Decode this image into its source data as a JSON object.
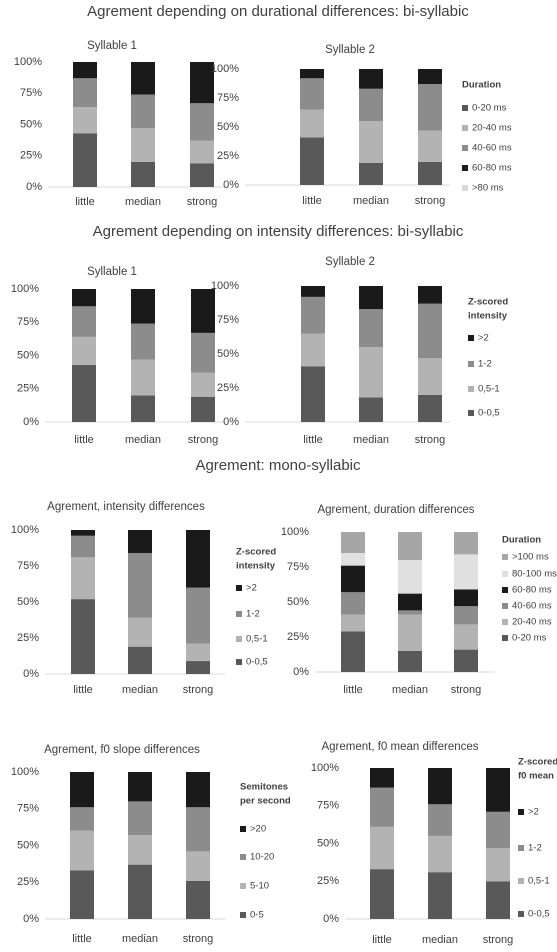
{
  "headings": [
    "Agrement depending on durational differences: bi-syllabic",
    "Agrement depending on intensity differences: bi-syllabic",
    "Agrement: mono-syllabic"
  ],
  "chart_data": [
    {
      "type": "bar",
      "stacked": true,
      "title": "Syllable 1",
      "categories": [
        "little",
        "median",
        "strong"
      ],
      "series": [
        {
          "color": "#595959",
          "values": [
            43,
            20,
            19
          ]
        },
        {
          "color": "#b3b3b3",
          "values": [
            21,
            27,
            18
          ]
        },
        {
          "color": "#8c8c8c",
          "values": [
            23,
            27,
            30
          ]
        },
        {
          "color": "#1a1a1a",
          "values": [
            13,
            26,
            33
          ]
        }
      ],
      "ylim": [
        0,
        100
      ],
      "yticks": [
        {
          "value": 0,
          "label": "0%"
        },
        {
          "value": 25,
          "label": "25%"
        },
        {
          "value": 50,
          "label": "50%"
        },
        {
          "value": 75,
          "label": "75%"
        },
        {
          "value": 100,
          "label": "100%"
        }
      ]
    },
    {
      "type": "bar",
      "stacked": true,
      "title": "Syllable 2",
      "categories": [
        "little",
        "median",
        "strong"
      ],
      "legend_title": [
        "Duration"
      ],
      "series": [
        {
          "name": "0-20 ms",
          "color": "#595959",
          "values": [
            41,
            19,
            20
          ]
        },
        {
          "name": "20-40 ms",
          "color": "#b3b3b3",
          "values": [
            24,
            36,
            27
          ]
        },
        {
          "name": "40-60 ms",
          "color": "#8c8c8c",
          "values": [
            27,
            28,
            40
          ]
        },
        {
          "name": "60-80 ms",
          "color": "#1a1a1a",
          "values": [
            8,
            17,
            13
          ]
        },
        {
          "name": ">80 ms",
          "color": "#d9d9d9",
          "values": [
            0,
            0,
            0
          ]
        }
      ],
      "ylim": [
        0,
        100
      ],
      "yticks": [
        {
          "value": 0,
          "label": "0%"
        },
        {
          "value": 25,
          "label": "25%"
        },
        {
          "value": 50,
          "label": "50%"
        },
        {
          "value": 75,
          "label": "75%"
        },
        {
          "value": 100,
          "label": "100%"
        }
      ]
    },
    {
      "type": "bar",
      "stacked": true,
      "title": "Syllable 1",
      "categories": [
        "little",
        "median",
        "strong"
      ],
      "series": [
        {
          "color": "#595959",
          "values": [
            43,
            20,
            19
          ]
        },
        {
          "color": "#b3b3b3",
          "values": [
            21,
            27,
            18
          ]
        },
        {
          "color": "#8c8c8c",
          "values": [
            23,
            27,
            30
          ]
        },
        {
          "color": "#1a1a1a",
          "values": [
            13,
            26,
            33
          ]
        }
      ],
      "ylim": [
        0,
        100
      ],
      "yticks": [
        {
          "value": 0,
          "label": "0%"
        },
        {
          "value": 25,
          "label": "25%"
        },
        {
          "value": 50,
          "label": "50%"
        },
        {
          "value": 75,
          "label": "75%"
        },
        {
          "value": 100,
          "label": "100%"
        }
      ]
    },
    {
      "type": "bar",
      "stacked": true,
      "title": "Syllable 2",
      "categories": [
        "little",
        "median",
        "strong"
      ],
      "legend_title": [
        "Z-scored",
        "intensity"
      ],
      "series": [
        {
          "name": "0-0,5",
          "color": "#595959",
          "values": [
            41,
            18,
            20
          ]
        },
        {
          "name": "0,5-1",
          "color": "#b3b3b3",
          "values": [
            24,
            37,
            27
          ]
        },
        {
          "name": "1-2",
          "color": "#8c8c8c",
          "values": [
            27,
            28,
            40
          ]
        },
        {
          "name": ">2",
          "color": "#1a1a1a",
          "values": [
            8,
            17,
            13
          ]
        }
      ],
      "ylim": [
        0,
        100
      ],
      "yticks": [
        {
          "value": 0,
          "label": "0%"
        },
        {
          "value": 25,
          "label": "25%"
        },
        {
          "value": 50,
          "label": "50%"
        },
        {
          "value": 75,
          "label": "75%"
        },
        {
          "value": 100,
          "label": "100%"
        }
      ]
    },
    {
      "type": "bar",
      "stacked": true,
      "title": "Agrement, intensity differences",
      "categories": [
        "little",
        "median",
        "strong"
      ],
      "legend_title": [
        "Z-scored",
        "intensity"
      ],
      "series": [
        {
          "name": "0-0,5",
          "color": "#595959",
          "values": [
            52,
            19,
            9
          ]
        },
        {
          "name": "0,5-1",
          "color": "#b3b3b3",
          "values": [
            29,
            20,
            12
          ]
        },
        {
          "name": "1-2",
          "color": "#8c8c8c",
          "values": [
            15,
            45,
            39
          ]
        },
        {
          "name": ">2",
          "color": "#1a1a1a",
          "values": [
            4,
            16,
            40
          ]
        }
      ],
      "ylim": [
        0,
        100
      ],
      "yticks": [
        {
          "value": 0,
          "label": "0%"
        },
        {
          "value": 25,
          "label": "25%"
        },
        {
          "value": 50,
          "label": "50%"
        },
        {
          "value": 75,
          "label": "75%"
        },
        {
          "value": 100,
          "label": "100%"
        }
      ]
    },
    {
      "type": "bar",
      "stacked": true,
      "title": "Agrement, duration differences",
      "categories": [
        "little",
        "median",
        "strong"
      ],
      "legend_title": [
        "Duration"
      ],
      "series": [
        {
          "name": "0-20 ms",
          "color": "#595959",
          "values": [
            29,
            15,
            16
          ]
        },
        {
          "name": "20-40 ms",
          "color": "#b3b3b3",
          "values": [
            12,
            26,
            18
          ]
        },
        {
          "name": "40-60 ms",
          "color": "#8c8c8c",
          "values": [
            16,
            3,
            13
          ]
        },
        {
          "name": "60-80 ms",
          "color": "#1a1a1a",
          "values": [
            19,
            12,
            12
          ]
        },
        {
          "name": "80-100 ms",
          "color": "#e0e0e0",
          "values": [
            9,
            24,
            25
          ]
        },
        {
          "name": ">100 ms",
          "color": "#a6a6a6",
          "values": [
            15,
            20,
            16
          ]
        }
      ],
      "ylim": [
        0,
        100
      ],
      "yticks": [
        {
          "value": 0,
          "label": "0%"
        },
        {
          "value": 25,
          "label": "25%"
        },
        {
          "value": 50,
          "label": "50%"
        },
        {
          "value": 75,
          "label": "75%"
        },
        {
          "value": 100,
          "label": "100%"
        }
      ]
    },
    {
      "type": "bar",
      "stacked": true,
      "title": "Agrement, f0 slope differences",
      "categories": [
        "little",
        "median",
        "strong"
      ],
      "legend_title": [
        "Semitones",
        "per second"
      ],
      "series": [
        {
          "name": "0-5",
          "color": "#595959",
          "values": [
            33,
            37,
            26
          ]
        },
        {
          "name": "5-10",
          "color": "#b3b3b3",
          "values": [
            27,
            20,
            20
          ]
        },
        {
          "name": "10-20",
          "color": "#8c8c8c",
          "values": [
            16,
            23,
            30
          ]
        },
        {
          "name": ">20",
          "color": "#1a1a1a",
          "values": [
            24,
            20,
            24
          ]
        }
      ],
      "ylim": [
        0,
        100
      ],
      "yticks": [
        {
          "value": 0,
          "label": "0%"
        },
        {
          "value": 25,
          "label": "25%"
        },
        {
          "value": 50,
          "label": "50%"
        },
        {
          "value": 75,
          "label": "75%"
        },
        {
          "value": 100,
          "label": "100%"
        }
      ]
    },
    {
      "type": "bar",
      "stacked": true,
      "title": "Agrement, f0 mean differences",
      "categories": [
        "little",
        "median",
        "strong"
      ],
      "legend_title": [
        "Z-scored",
        "f0 mean"
      ],
      "series": [
        {
          "name": "0-0,5",
          "color": "#595959",
          "values": [
            33,
            31,
            25
          ]
        },
        {
          "name": "0,5-1",
          "color": "#b3b3b3",
          "values": [
            28,
            24,
            22
          ]
        },
        {
          "name": "1-2",
          "color": "#8c8c8c",
          "values": [
            26,
            21,
            24
          ]
        },
        {
          "name": ">2",
          "color": "#1a1a1a",
          "values": [
            13,
            24,
            29
          ]
        }
      ],
      "ylim": [
        0,
        100
      ],
      "yticks": [
        {
          "value": 0,
          "label": "0%"
        },
        {
          "value": 25,
          "label": "25%"
        },
        {
          "value": 50,
          "label": "50%"
        },
        {
          "value": 75,
          "label": "75%"
        },
        {
          "value": 100,
          "label": "100%"
        }
      ]
    }
  ]
}
